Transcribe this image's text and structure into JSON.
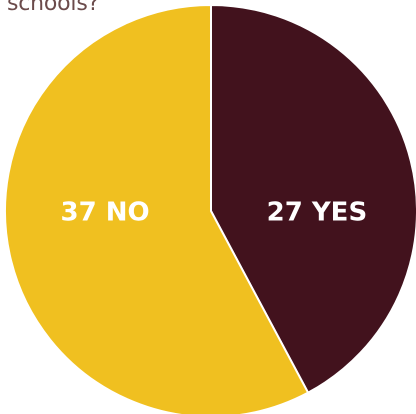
{
  "title_fragment": "schools?",
  "colors": {
    "yes": "#42121d",
    "no": "#f0c020",
    "slice_border": "#ffffff",
    "label": "#ffffff"
  },
  "chart_data": {
    "type": "pie",
    "slices": [
      {
        "name": "YES",
        "value": 27,
        "label": "27 YES",
        "color": "#42121d"
      },
      {
        "name": "NO",
        "value": 37,
        "label": "37 NO",
        "color": "#f0c020"
      }
    ],
    "start": "top",
    "direction": "clockwise"
  }
}
